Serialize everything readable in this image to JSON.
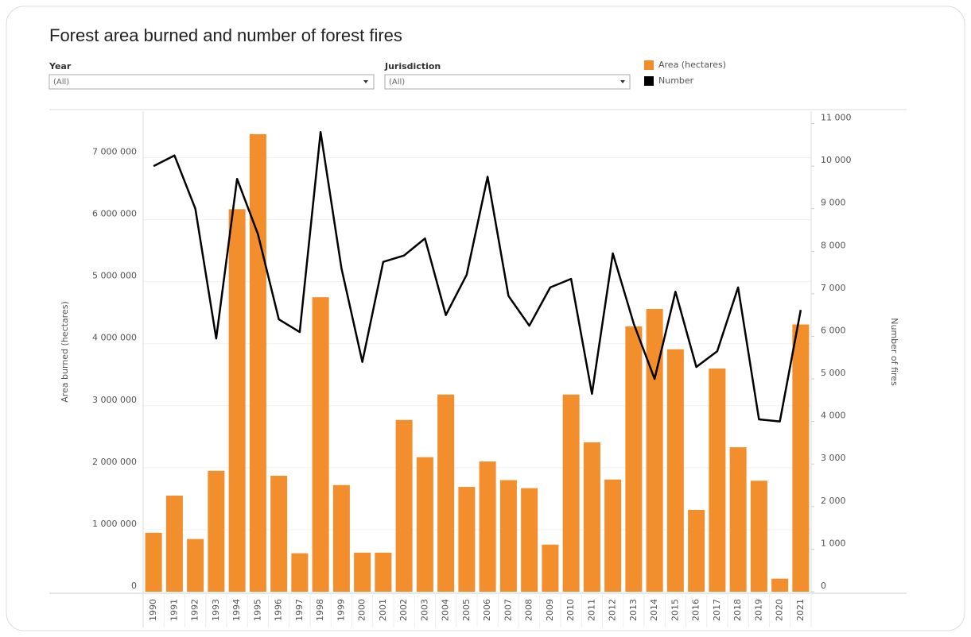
{
  "filters": [
    {
      "label": "Year",
      "value": "(All)"
    },
    {
      "label": "Jurisdiction",
      "value": "(All)"
    }
  ],
  "chart_data": {
    "type": "combo",
    "title": "Forest area burned and number of forest fires",
    "categories": [
      "1990",
      "1991",
      "1992",
      "1993",
      "1994",
      "1995",
      "1996",
      "1997",
      "1998",
      "1999",
      "2000",
      "2001",
      "2002",
      "2003",
      "2004",
      "2005",
      "2006",
      "2007",
      "2008",
      "2009",
      "2010",
      "2011",
      "2012",
      "2013",
      "2014",
      "2015",
      "2016",
      "2017",
      "2018",
      "2019",
      "2020",
      "2021"
    ],
    "series": [
      {
        "name": "Area (hectares)",
        "type": "bar",
        "axis": "y",
        "color": "#f28e2b",
        "values": [
          950000,
          1550000,
          850000,
          1950000,
          6170000,
          7380000,
          1870000,
          620000,
          4750000,
          1720000,
          630000,
          630000,
          2770000,
          2170000,
          3180000,
          1690000,
          2100000,
          1800000,
          1670000,
          760000,
          3180000,
          2410000,
          1810000,
          4280000,
          4560000,
          3910000,
          1320000,
          3600000,
          2330000,
          1790000,
          210000,
          4310000
        ]
      },
      {
        "name": "Number",
        "type": "line",
        "axis": "y2",
        "color": "#000000",
        "values": [
          10000,
          10250,
          9000,
          5950,
          9700,
          8400,
          6400,
          6100,
          10800,
          7600,
          5400,
          7750,
          7900,
          8300,
          6500,
          7450,
          9750,
          6950,
          6250,
          7150,
          7350,
          4650,
          7950,
          6300,
          5000,
          7050,
          5280,
          5650,
          7150,
          4050,
          4000,
          6620
        ]
      }
    ],
    "ylabel": "Area burned (hectares)",
    "y2label": "Number of fires",
    "ylim": [
      0,
      7750000
    ],
    "yticks": [
      0,
      {
        "value": 1000000,
        "label": "1 000 000"
      },
      {
        "value": 2000000,
        "label": "2 000 000"
      },
      {
        "value": 3000000,
        "label": "3 000 000"
      },
      {
        "value": 4000000,
        "label": "4 000 000"
      },
      {
        "value": 5000000,
        "label": "5 000 000"
      },
      {
        "value": 6000000,
        "label": "6 000 000"
      },
      {
        "value": 7000000,
        "label": "7 000 000"
      }
    ],
    "y2lim": [
      0,
      11290
    ],
    "y2ticks": [
      0,
      {
        "value": 1000,
        "label": "1 000"
      },
      {
        "value": 2000,
        "label": "2 000"
      },
      {
        "value": 3000,
        "label": "3 000"
      },
      {
        "value": 4000,
        "label": "4 000"
      },
      {
        "value": 5000,
        "label": "5 000"
      },
      {
        "value": 6000,
        "label": "6 000"
      },
      {
        "value": 7000,
        "label": "7 000"
      },
      {
        "value": 8000,
        "label": "8 000"
      },
      {
        "value": 9000,
        "label": "9 000"
      },
      {
        "value": 10000,
        "label": "10 000"
      },
      {
        "value": 11000,
        "label": "11 000"
      }
    ],
    "grid": true
  }
}
